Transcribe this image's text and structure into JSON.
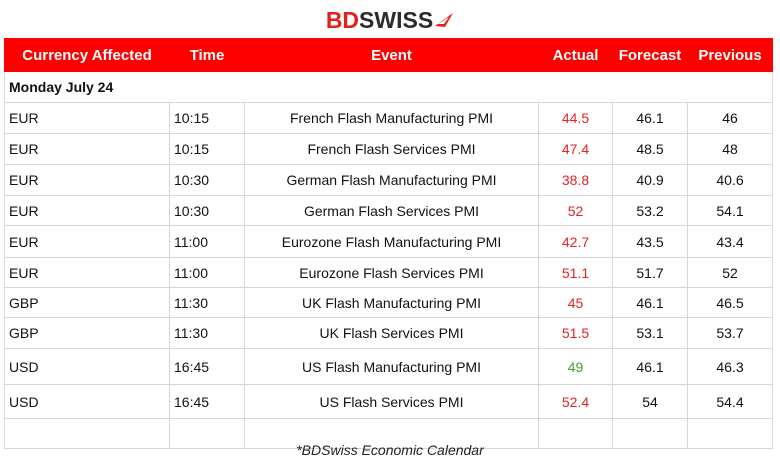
{
  "brand": {
    "bd": "BD",
    "swiss": "SWISS",
    "accent_color": "#e2211c",
    "mark": "logo-swoosh-icon"
  },
  "columns": [
    "Currency Affected",
    "Time",
    "Event",
    "Actual",
    "Forecast",
    "Previous"
  ],
  "day_label": "Monday July 24",
  "rows": [
    {
      "currency": "EUR",
      "time": "10:15",
      "event": "French Flash Manufacturing PMI",
      "actual": "44.5",
      "actual_status": "negative",
      "forecast": "46.1",
      "previous": "46"
    },
    {
      "currency": "EUR",
      "time": "10:15",
      "event": "French Flash Services PMI",
      "actual": "47.4",
      "actual_status": "negative",
      "forecast": "48.5",
      "previous": "48"
    },
    {
      "currency": "EUR",
      "time": "10:30",
      "event": "German Flash Manufacturing PMI",
      "actual": "38.8",
      "actual_status": "negative",
      "forecast": "40.9",
      "previous": "40.6"
    },
    {
      "currency": "EUR",
      "time": "10:30",
      "event": "German Flash Services PMI",
      "actual": "52",
      "actual_status": "negative",
      "forecast": "53.2",
      "previous": "54.1"
    },
    {
      "currency": "EUR",
      "time": "11:00",
      "event": "Eurozone Flash Manufacturing PMI",
      "actual": "42.7",
      "actual_status": "negative",
      "forecast": "43.5",
      "previous": "43.4"
    },
    {
      "currency": "EUR",
      "time": "11:00",
      "event": "Eurozone Flash Services PMI",
      "actual": "51.1",
      "actual_status": "negative",
      "forecast": "51.7",
      "previous": "52"
    },
    {
      "currency": "GBP",
      "time": "11:30",
      "event": "UK Flash Manufacturing PMI",
      "actual": "45",
      "actual_status": "negative",
      "forecast": "46.1",
      "previous": "46.5"
    },
    {
      "currency": "GBP",
      "time": "11:30",
      "event": "UK Flash Services PMI",
      "actual": "51.5",
      "actual_status": "negative",
      "forecast": "53.1",
      "previous": "53.7"
    },
    {
      "currency": "USD",
      "time": "16:45",
      "event": "US Flash Manufacturing PMI",
      "actual": "49",
      "actual_status": "positive",
      "forecast": "46.1",
      "previous": "46.3"
    },
    {
      "currency": "USD",
      "time": "16:45",
      "event": "US Flash Services PMI",
      "actual": "52.4",
      "actual_status": "negative",
      "forecast": "54",
      "previous": "54.4"
    }
  ],
  "colors": {
    "header_bg": "#ff0000",
    "negative": "#e52420",
    "positive": "#4e9a2e"
  },
  "footer": "*BDSwiss Economic Calendar"
}
